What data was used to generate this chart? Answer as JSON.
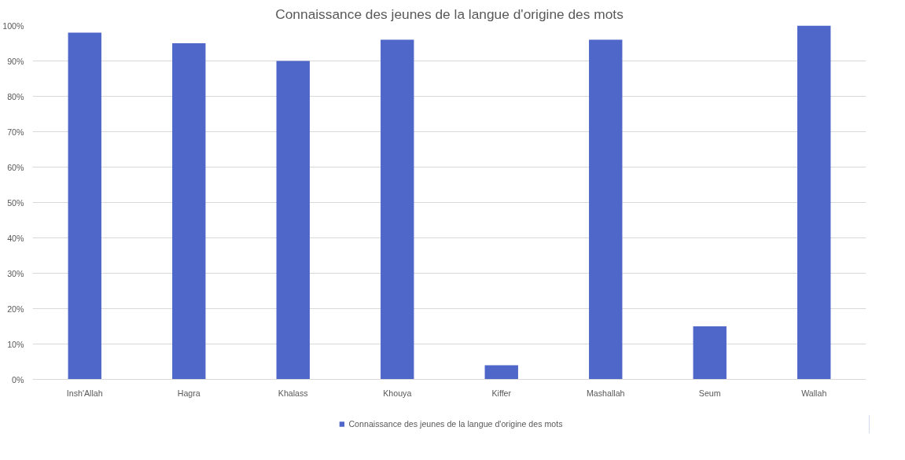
{
  "chart_data": {
    "type": "bar",
    "title": "Connaissance des jeunes de la langue d'origine des mots",
    "categories": [
      "Insh'Allah",
      "Hagra",
      "Khalass",
      "Khouya",
      "Kiffer",
      "Mashallah",
      "Seum",
      "Wallah"
    ],
    "series": [
      {
        "name": "Connaissance des jeunes de la langue d'origine des mots",
        "color": "#4f67c8",
        "values": [
          98,
          95,
          90,
          96,
          4,
          96,
          15,
          100
        ]
      }
    ],
    "ylim": [
      0,
      100
    ],
    "yticks": [
      {
        "value": 0,
        "label": "0%"
      },
      {
        "value": 10,
        "label": "10%"
      },
      {
        "value": 20,
        "label": "20%"
      },
      {
        "value": 30,
        "label": "30%"
      },
      {
        "value": 40,
        "label": "40%"
      },
      {
        "value": 50,
        "label": "50%"
      },
      {
        "value": 60,
        "label": "60%"
      },
      {
        "value": 70,
        "label": "70%"
      },
      {
        "value": 80,
        "label": "80%"
      },
      {
        "value": 90,
        "label": "90%"
      },
      {
        "value": 100,
        "label": "100%"
      }
    ],
    "grid": "y",
    "legend": "bottom"
  }
}
